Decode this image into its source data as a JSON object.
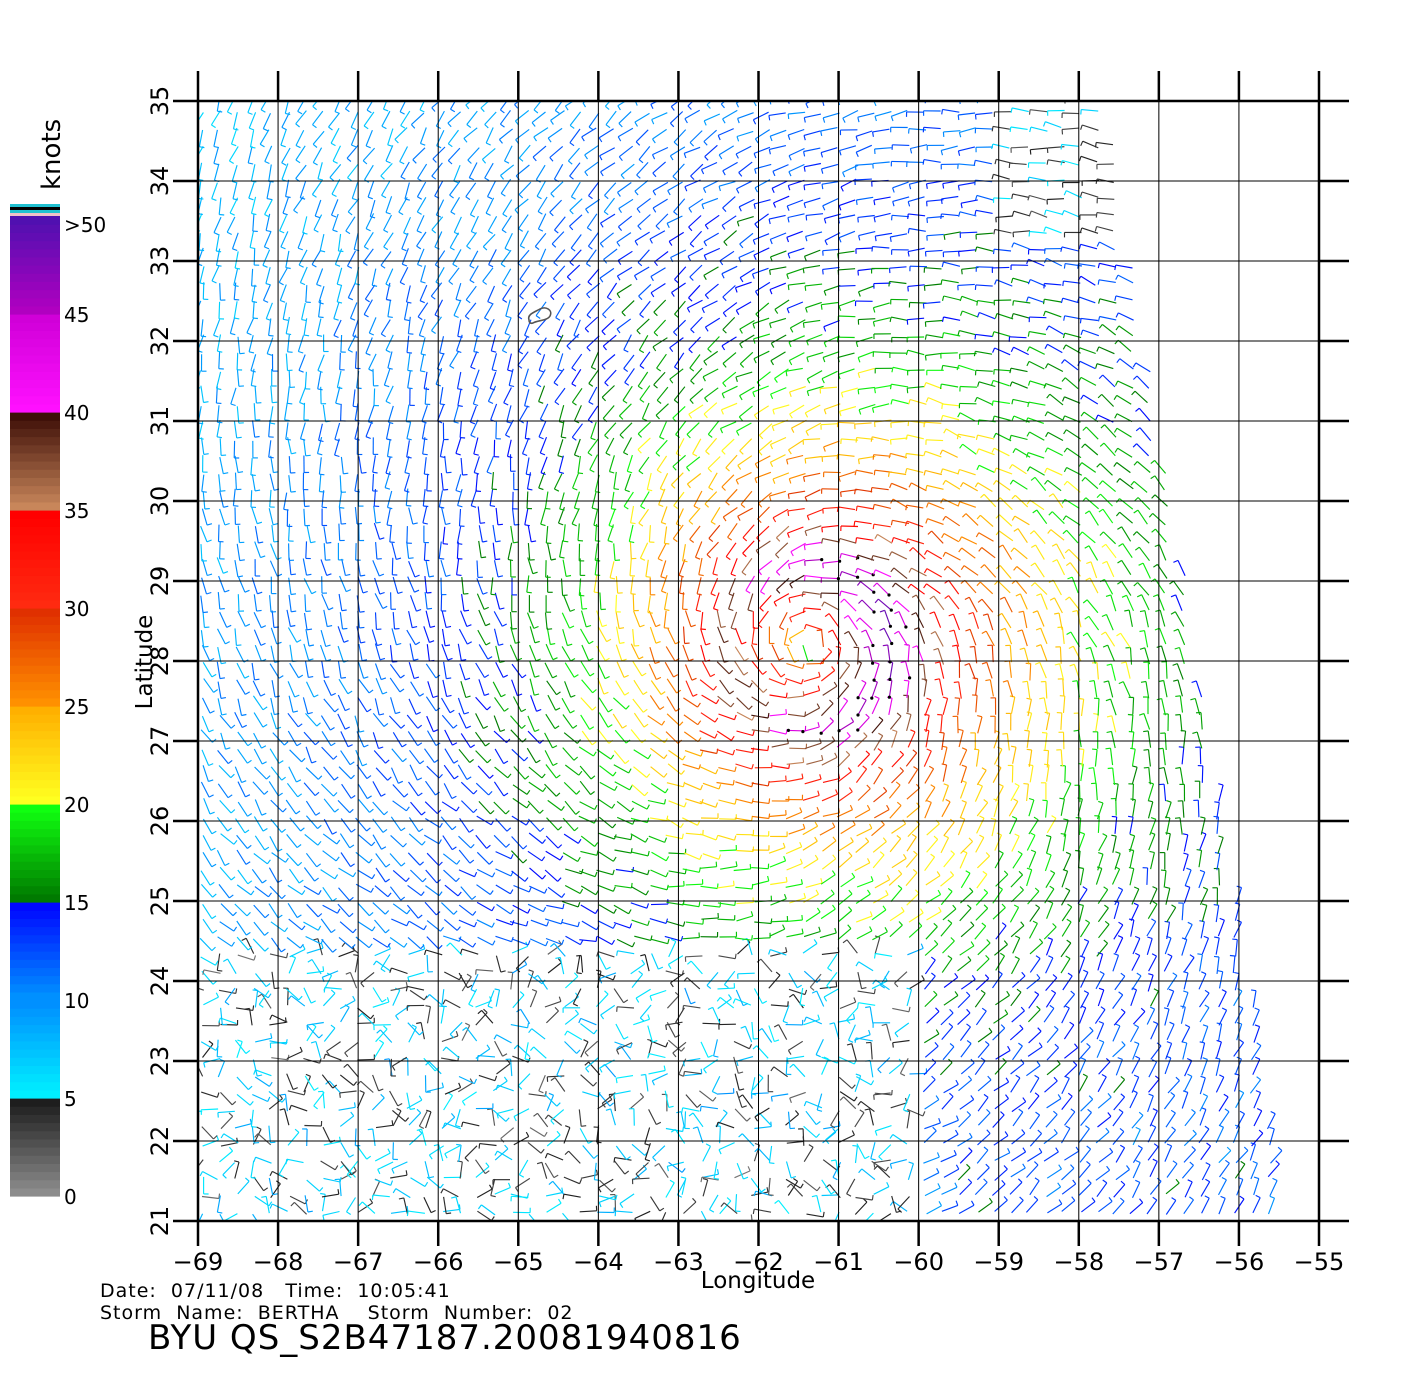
{
  "legend": {
    "unit_label": "knots",
    "tick_labels": [
      ">50",
      "45",
      "40",
      "35",
      "30",
      "25",
      "20",
      "15",
      "10",
      "5",
      "0"
    ],
    "bands": [
      {
        "from": 0,
        "to": 5,
        "colors": [
          "#8c8c8c",
          "#1e1e1e"
        ]
      },
      {
        "from": 5,
        "to": 10,
        "colors": [
          "#00f0ff",
          "#0090ff"
        ]
      },
      {
        "from": 10,
        "to": 15,
        "colors": [
          "#0090ff",
          "#0008ff"
        ]
      },
      {
        "from": 15,
        "to": 20,
        "colors": [
          "#007a00",
          "#10ff10"
        ]
      },
      {
        "from": 20,
        "to": 25,
        "colors": [
          "#ffff20",
          "#ffb000"
        ]
      },
      {
        "from": 25,
        "to": 30,
        "colors": [
          "#ff9000",
          "#e03000"
        ]
      },
      {
        "from": 30,
        "to": 35,
        "colors": [
          "#ff2a10",
          "#ff0000"
        ]
      },
      {
        "from": 35,
        "to": 40,
        "colors": [
          "#c8865a",
          "#3e0f08"
        ]
      },
      {
        "from": 40,
        "to": 45,
        "colors": [
          "#ff10ff",
          "#d000d8"
        ]
      },
      {
        "from": 45,
        "to": 50,
        "colors": [
          "#b000c0",
          "#5010b0"
        ]
      }
    ],
    "top_strip_colors": [
      "#f0c0c8",
      "#20c0d0",
      "#000000",
      "#20c0d0"
    ]
  },
  "map": {
    "x_axis_title": "Longitude",
    "y_axis_title": "Latitude",
    "x_ticks": [
      "−69",
      "−68",
      "−67",
      "−66",
      "−65",
      "−64",
      "−63",
      "−62",
      "−61",
      "−60",
      "−59",
      "−58",
      "−57",
      "−56",
      "−55"
    ],
    "y_ticks": [
      "35",
      "34",
      "33",
      "32",
      "31",
      "30",
      "29",
      "28",
      "27",
      "26",
      "25",
      "24",
      "23",
      "22",
      "21"
    ],
    "lon_range": [
      -69,
      -55
    ],
    "lat_range": [
      21,
      35
    ],
    "grid": true,
    "island_label": ""
  },
  "chart_data": {
    "type": "heatmap",
    "title": "",
    "xlabel": "Longitude",
    "ylabel": "Latitude",
    "xlim": [
      -69,
      -55
    ],
    "ylim": [
      21,
      35
    ],
    "colorbar": {
      "label": "knots",
      "min": 0,
      "max": 50,
      "ticks": [
        0,
        5,
        10,
        15,
        20,
        25,
        30,
        35,
        40,
        45,
        50
      ]
    },
    "storm_center": {
      "lon": -61.4,
      "lat": 28.2
    },
    "island": {
      "lon": -64.8,
      "lat": 32.3
    }
  },
  "footer": {
    "date_line": "Date:  07/11/08   Time:  10:05:41",
    "storm_line": "Storm  Name:  BERTHA    Storm  Number:  02",
    "product_title": "BYU  QS_S2B47187.20081940816"
  }
}
